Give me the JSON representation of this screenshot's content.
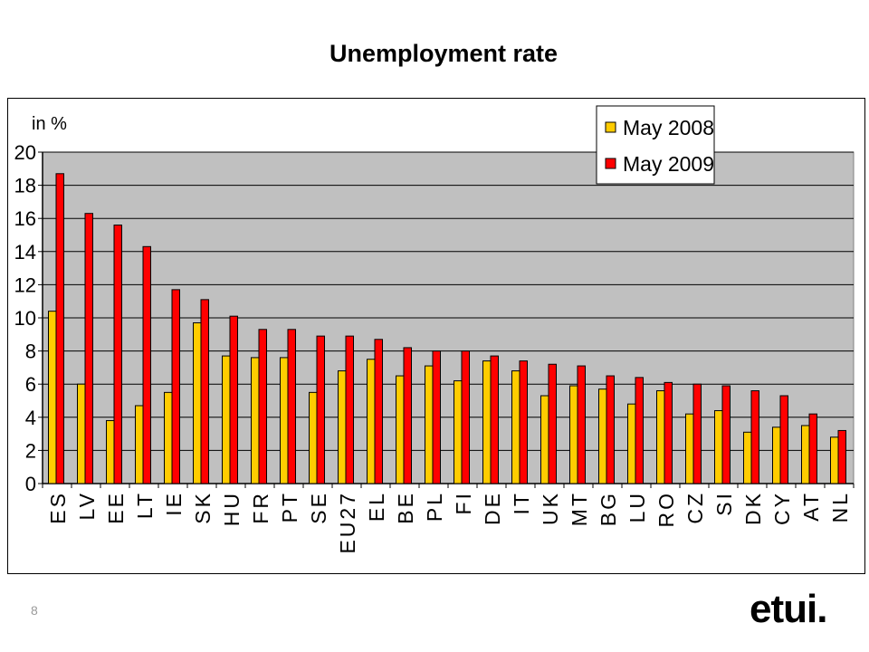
{
  "slide": {
    "title": "Unemployment rate",
    "page_number": "8",
    "logo_text": "etui."
  },
  "colors": {
    "plot_background": "#c0c0c0",
    "series_2008": "#ffcc00",
    "series_2009": "#ff0000"
  },
  "chart_data": {
    "type": "bar",
    "title": "",
    "ylabel": "in %",
    "xlabel": "",
    "ylim": [
      0,
      20
    ],
    "yticks": [
      0,
      2,
      4,
      6,
      8,
      10,
      12,
      14,
      16,
      18,
      20
    ],
    "grid": true,
    "legend_position": "top-right",
    "categories": [
      "ES",
      "LV",
      "EE",
      "LT",
      "IE",
      "SK",
      "HU",
      "FR",
      "PT",
      "SE",
      "EU27",
      "EL",
      "BE",
      "PL",
      "FI",
      "DE",
      "IT",
      "UK",
      "MT",
      "BG",
      "LU",
      "RO",
      "CZ",
      "SI",
      "DK",
      "CY",
      "AT",
      "NL"
    ],
    "series": [
      {
        "name": "May 2008",
        "values": [
          10.4,
          6.0,
          3.8,
          4.7,
          5.5,
          9.7,
          7.7,
          7.6,
          7.6,
          5.5,
          6.8,
          7.5,
          6.5,
          7.1,
          6.2,
          7.4,
          6.8,
          5.3,
          5.9,
          5.7,
          4.8,
          5.6,
          4.2,
          4.4,
          3.1,
          3.4,
          3.5,
          2.8
        ]
      },
      {
        "name": "May 2009",
        "values": [
          18.7,
          16.3,
          15.6,
          14.3,
          11.7,
          11.1,
          10.1,
          9.3,
          9.3,
          8.9,
          8.9,
          8.7,
          8.2,
          8.0,
          8.0,
          7.7,
          7.4,
          7.2,
          7.1,
          6.5,
          6.4,
          6.1,
          6.0,
          5.9,
          5.6,
          5.3,
          4.2,
          3.2
        ]
      }
    ]
  }
}
